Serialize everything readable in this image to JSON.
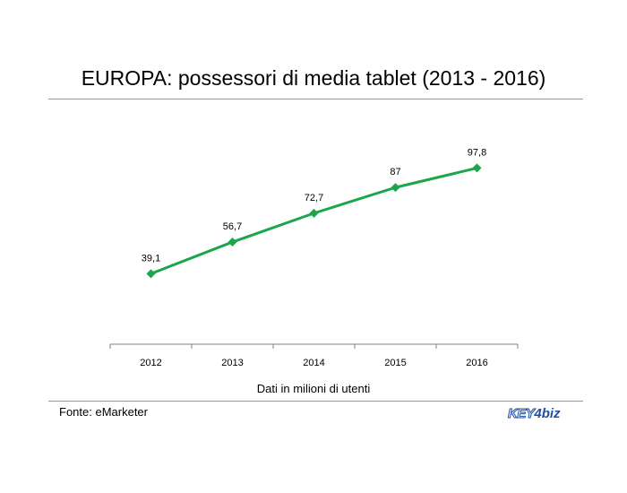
{
  "title": "EUROPA: possessori di media tablet (2013 - 2016)",
  "note": "Dati in milioni di utenti",
  "source": "Fonte: eMarketer",
  "logo": {
    "part1": "KEY",
    "part2": "4",
    "part3": "biz"
  },
  "colors": {
    "line": "#1aa64a",
    "axis": "#808080",
    "rule": "#9a9a9a",
    "logo": "#1f4ea3"
  },
  "chart_data": {
    "type": "line",
    "categories": [
      "2012",
      "2013",
      "2014",
      "2015",
      "2016"
    ],
    "series": [
      {
        "values": [
          39.1,
          56.7,
          72.7,
          87,
          97.8
        ],
        "labels": [
          "39,1",
          "56,7",
          "72,7",
          "87",
          "97,8"
        ]
      }
    ],
    "xlabel": "Dati in milioni di utenti",
    "ylabel": "",
    "ylim": [
      0,
      100
    ],
    "grid": false,
    "legend": "none",
    "marker": "diamond"
  }
}
